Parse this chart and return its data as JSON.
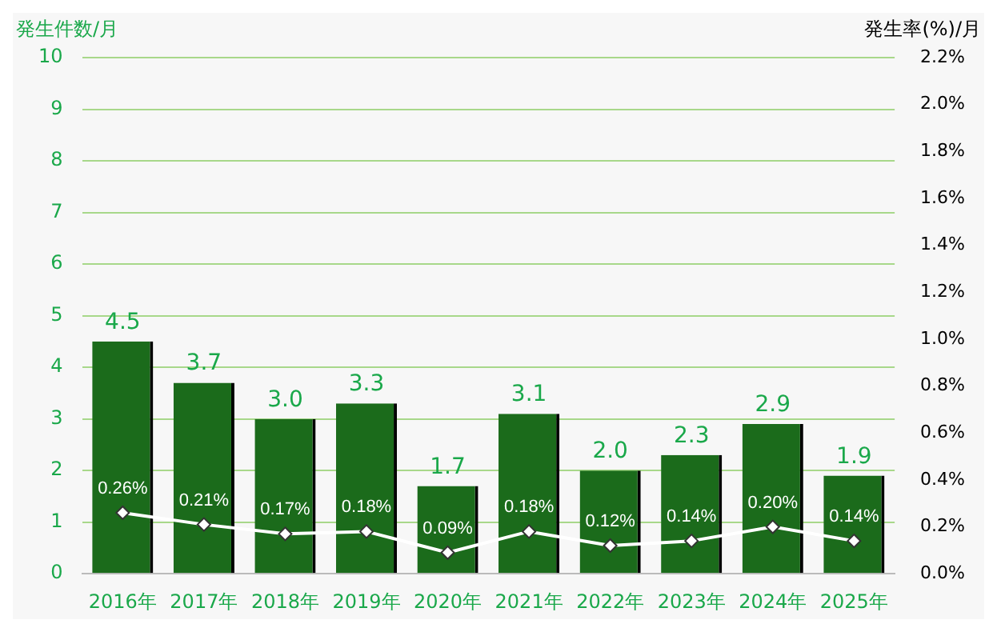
{
  "chart_data": {
    "type": "bar",
    "categories": [
      "2016年",
      "2017年",
      "2018年",
      "2019年",
      "2020年",
      "2021年",
      "2022年",
      "2023年",
      "2024年",
      "2025年"
    ],
    "ylabel": "発生件数/月",
    "y2label": "発生率(%)/月",
    "series": [
      {
        "color": "#1b6b1b",
        "values": [
          4.5,
          3.7,
          3.0,
          3.3,
          1.7,
          3.1,
          2.0,
          2.3,
          2.9,
          1.9
        ],
        "value_labels": [
          "4.5",
          "3.7",
          "3.0",
          "3.3",
          "1.7",
          "3.1",
          "2.0",
          "2.3",
          "2.9",
          "1.9"
        ]
      },
      {
        "type": "line",
        "axis": "y2",
        "color": "#ffffff",
        "marker": "diamond",
        "values": [
          0.26,
          0.21,
          0.17,
          0.18,
          0.09,
          0.18,
          0.12,
          0.14,
          0.2,
          0.14
        ],
        "value_labels": [
          "0.26%",
          "0.21%",
          "0.17%",
          "0.18%",
          "0.09%",
          "0.18%",
          "0.12%",
          "0.14%",
          "0.20%",
          "0.14%"
        ]
      }
    ],
    "ylim": [
      0,
      10
    ],
    "yticks": [
      0,
      1,
      2,
      3,
      4,
      5,
      6,
      7,
      8,
      9,
      10
    ],
    "y2lim": [
      0,
      2.2
    ],
    "y2ticks": [
      {
        "value": 0,
        "label": "0.0%"
      },
      {
        "value": 0.2,
        "label": "0.2%"
      },
      {
        "value": 0.4,
        "label": "0.4%"
      },
      {
        "value": 0.6,
        "label": "0.6%"
      },
      {
        "value": 0.8,
        "label": "0.8%"
      },
      {
        "value": 1.0,
        "label": "1.0%"
      },
      {
        "value": 1.2,
        "label": "1.2%"
      },
      {
        "value": 1.4,
        "label": "1.4%"
      },
      {
        "value": 1.6,
        "label": "1.6%"
      },
      {
        "value": 1.8,
        "label": "1.8%"
      },
      {
        "value": 2.0,
        "label": "2.0%"
      },
      {
        "value": 2.2,
        "label": "2.2%"
      }
    ],
    "grid": "y",
    "legend": false
  }
}
